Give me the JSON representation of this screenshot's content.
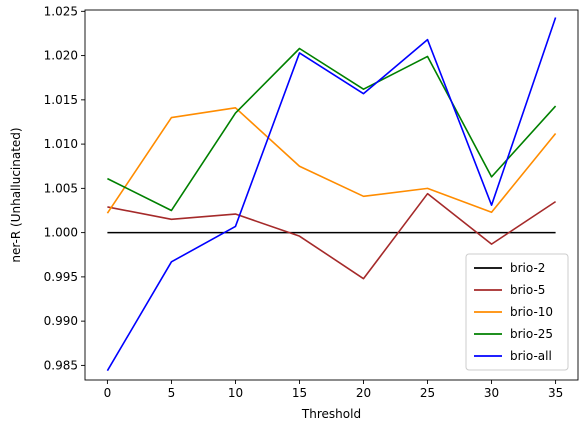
{
  "chart_data": {
    "type": "line",
    "title": "",
    "xlabel": "Threshold",
    "ylabel": "ner-R (Unhallucinated)",
    "x": [
      0,
      5,
      10,
      15,
      20,
      25,
      30,
      35
    ],
    "xlim": [
      -1.75,
      36.75
    ],
    "ylim": [
      0.98335,
      1.02515
    ],
    "xticks": [
      0,
      5,
      10,
      15,
      20,
      25,
      30,
      35
    ],
    "xtick_labels": [
      "0",
      "5",
      "10",
      "15",
      "20",
      "25",
      "30",
      "35"
    ],
    "yticks": [
      0.985,
      0.99,
      0.995,
      1.0,
      1.005,
      1.01,
      1.015,
      1.02,
      1.025
    ],
    "ytick_labels": [
      "0.985",
      "0.990",
      "0.995",
      "1.000",
      "1.005",
      "1.010",
      "1.015",
      "1.020",
      "1.025"
    ],
    "grid": false,
    "legend_position": "bottom-right",
    "series": [
      {
        "name": "brio-2",
        "color": "#000000",
        "values": [
          1.0,
          1.0,
          1.0,
          1.0,
          1.0,
          1.0,
          1.0,
          1.0
        ]
      },
      {
        "name": "brio-5",
        "color": "#a52a2a",
        "values": [
          1.0029,
          1.0015,
          1.0021,
          0.9996,
          0.9948,
          1.0044,
          0.9987,
          1.0035
        ]
      },
      {
        "name": "brio-10",
        "color": "#ff8c00",
        "values": [
          1.0022,
          1.013,
          1.0141,
          1.0075,
          1.0041,
          1.005,
          1.0023,
          1.0112
        ]
      },
      {
        "name": "brio-25",
        "color": "#008000",
        "values": [
          1.0061,
          1.0025,
          1.0135,
          1.0208,
          1.0162,
          1.0199,
          1.0063,
          1.0143
        ]
      },
      {
        "name": "brio-all",
        "color": "#0000ff",
        "values": [
          0.9844,
          0.9967,
          1.0007,
          1.0203,
          1.0157,
          1.0218,
          1.0031,
          1.0243
        ]
      }
    ]
  }
}
